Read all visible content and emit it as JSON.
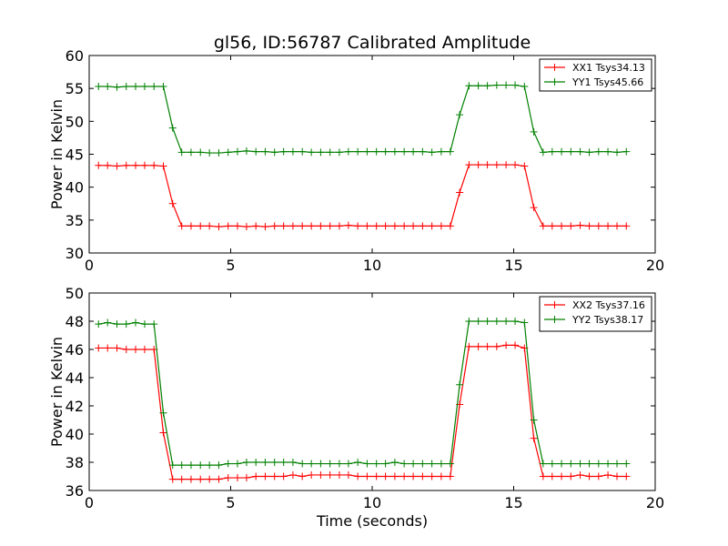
{
  "chart_data": [
    {
      "type": "line",
      "title": "gl56, ID:56787 Calibrated Amplitude",
      "xlabel": "",
      "ylabel": "Power in Kelvin",
      "xlim": [
        0,
        20
      ],
      "ylim": [
        30,
        60
      ],
      "x_ticks": [
        0,
        5,
        10,
        15,
        20
      ],
      "y_ticks": [
        30,
        35,
        40,
        45,
        50,
        55,
        60
      ],
      "grid": false,
      "legend_position": "top-right",
      "series": [
        {
          "name": "XX1 Tsys34.13",
          "color": "#ff0000",
          "x": [
            0.33,
            0.65,
            0.98,
            1.31,
            1.64,
            1.96,
            2.29,
            2.62,
            2.95,
            3.27,
            3.6,
            3.93,
            4.25,
            4.58,
            4.91,
            5.24,
            5.56,
            5.89,
            6.22,
            6.55,
            6.87,
            7.2,
            7.53,
            7.85,
            8.18,
            8.51,
            8.84,
            9.16,
            9.49,
            9.82,
            10.15,
            10.47,
            10.8,
            11.13,
            11.45,
            11.78,
            12.11,
            12.44,
            12.76,
            13.09,
            13.42,
            13.75,
            14.07,
            14.4,
            14.73,
            15.05,
            15.38,
            15.71,
            16.04,
            16.36,
            16.69,
            17.02,
            17.35,
            17.67,
            18.0,
            18.33,
            18.65,
            18.98
          ],
          "y": [
            43.3,
            43.3,
            43.2,
            43.3,
            43.3,
            43.3,
            43.3,
            43.2,
            37.5,
            34.1,
            34.1,
            34.1,
            34.1,
            34.0,
            34.1,
            34.1,
            34.0,
            34.1,
            34.0,
            34.1,
            34.1,
            34.1,
            34.1,
            34.1,
            34.1,
            34.1,
            34.1,
            34.2,
            34.1,
            34.1,
            34.1,
            34.1,
            34.1,
            34.1,
            34.1,
            34.1,
            34.1,
            34.1,
            34.1,
            39.2,
            43.4,
            43.4,
            43.4,
            43.4,
            43.4,
            43.4,
            43.2,
            36.9,
            34.1,
            34.1,
            34.1,
            34.1,
            34.2,
            34.1,
            34.1,
            34.1,
            34.1,
            34.1
          ]
        },
        {
          "name": "YY1 Tsys45.66",
          "color": "#008000",
          "x": [
            0.33,
            0.65,
            0.98,
            1.31,
            1.64,
            1.96,
            2.29,
            2.62,
            2.95,
            3.27,
            3.6,
            3.93,
            4.25,
            4.58,
            4.91,
            5.24,
            5.56,
            5.89,
            6.22,
            6.55,
            6.87,
            7.2,
            7.53,
            7.85,
            8.18,
            8.51,
            8.84,
            9.16,
            9.49,
            9.82,
            10.15,
            10.47,
            10.8,
            11.13,
            11.45,
            11.78,
            12.11,
            12.44,
            12.76,
            13.09,
            13.42,
            13.75,
            14.07,
            14.4,
            14.73,
            15.05,
            15.38,
            15.71,
            16.04,
            16.36,
            16.69,
            17.02,
            17.35,
            17.67,
            18.0,
            18.33,
            18.65,
            18.98
          ],
          "y": [
            55.3,
            55.3,
            55.2,
            55.3,
            55.3,
            55.3,
            55.3,
            55.3,
            49.0,
            45.3,
            45.3,
            45.3,
            45.2,
            45.2,
            45.3,
            45.4,
            45.5,
            45.4,
            45.4,
            45.3,
            45.4,
            45.4,
            45.4,
            45.3,
            45.3,
            45.3,
            45.3,
            45.4,
            45.4,
            45.4,
            45.4,
            45.4,
            45.4,
            45.4,
            45.4,
            45.4,
            45.3,
            45.4,
            45.4,
            51.0,
            55.4,
            55.4,
            55.4,
            55.5,
            55.5,
            55.5,
            55.3,
            48.4,
            45.3,
            45.4,
            45.4,
            45.4,
            45.4,
            45.3,
            45.4,
            45.4,
            45.3,
            45.4
          ]
        }
      ]
    },
    {
      "type": "line",
      "title": "",
      "xlabel": "Time (seconds)",
      "ylabel": "Power in Kelvin",
      "xlim": [
        0,
        20
      ],
      "ylim": [
        36,
        50
      ],
      "x_ticks": [
        0,
        5,
        10,
        15,
        20
      ],
      "y_ticks": [
        36,
        38,
        40,
        42,
        44,
        46,
        48,
        50
      ],
      "grid": false,
      "legend_position": "top-right",
      "series": [
        {
          "name": "XX2 Tsys37.16",
          "color": "#ff0000",
          "x": [
            0.33,
            0.65,
            0.98,
            1.31,
            1.64,
            1.96,
            2.29,
            2.62,
            2.95,
            3.27,
            3.6,
            3.93,
            4.25,
            4.58,
            4.91,
            5.24,
            5.56,
            5.89,
            6.22,
            6.55,
            6.87,
            7.2,
            7.53,
            7.85,
            8.18,
            8.51,
            8.84,
            9.16,
            9.49,
            9.82,
            10.15,
            10.47,
            10.8,
            11.13,
            11.45,
            11.78,
            12.11,
            12.44,
            12.76,
            13.09,
            13.42,
            13.75,
            14.07,
            14.4,
            14.73,
            15.05,
            15.38,
            15.71,
            16.04,
            16.36,
            16.69,
            17.02,
            17.35,
            17.67,
            18.0,
            18.33,
            18.65,
            18.98
          ],
          "y": [
            46.1,
            46.1,
            46.1,
            46.0,
            46.0,
            46.0,
            46.0,
            40.1,
            36.8,
            36.8,
            36.8,
            36.8,
            36.8,
            36.8,
            36.9,
            36.9,
            36.9,
            37.0,
            37.0,
            37.0,
            37.0,
            37.1,
            37.0,
            37.1,
            37.1,
            37.1,
            37.1,
            37.1,
            37.0,
            37.0,
            37.0,
            37.0,
            37.0,
            37.0,
            37.0,
            37.0,
            37.0,
            37.0,
            37.0,
            42.1,
            46.2,
            46.2,
            46.2,
            46.2,
            46.3,
            46.3,
            46.1,
            39.7,
            37.0,
            37.0,
            37.0,
            37.0,
            37.1,
            37.0,
            37.0,
            37.1,
            37.0,
            37.0
          ]
        },
        {
          "name": "YY2 Tsys38.17",
          "color": "#008000",
          "x": [
            0.33,
            0.65,
            0.98,
            1.31,
            1.64,
            1.96,
            2.29,
            2.62,
            2.95,
            3.27,
            3.6,
            3.93,
            4.25,
            4.58,
            4.91,
            5.24,
            5.56,
            5.89,
            6.22,
            6.55,
            6.87,
            7.2,
            7.53,
            7.85,
            8.18,
            8.51,
            8.84,
            9.16,
            9.49,
            9.82,
            10.15,
            10.47,
            10.8,
            11.13,
            11.45,
            11.78,
            12.11,
            12.44,
            12.76,
            13.09,
            13.42,
            13.75,
            14.07,
            14.4,
            14.73,
            15.05,
            15.38,
            15.71,
            16.04,
            16.36,
            16.69,
            17.02,
            17.35,
            17.67,
            18.0,
            18.33,
            18.65,
            18.98
          ],
          "y": [
            47.8,
            47.9,
            47.8,
            47.8,
            47.9,
            47.8,
            47.8,
            41.5,
            37.8,
            37.8,
            37.8,
            37.8,
            37.8,
            37.8,
            37.9,
            37.9,
            38.0,
            38.0,
            38.0,
            38.0,
            38.0,
            38.0,
            37.9,
            37.9,
            37.9,
            37.9,
            37.9,
            37.9,
            38.0,
            37.9,
            37.9,
            37.9,
            38.0,
            37.9,
            37.9,
            37.9,
            37.9,
            37.9,
            37.9,
            43.5,
            48.0,
            48.0,
            48.0,
            48.0,
            48.0,
            48.0,
            47.9,
            41.0,
            37.9,
            37.9,
            37.9,
            37.9,
            37.9,
            37.9,
            37.9,
            37.9,
            37.9,
            37.9
          ]
        }
      ]
    }
  ]
}
